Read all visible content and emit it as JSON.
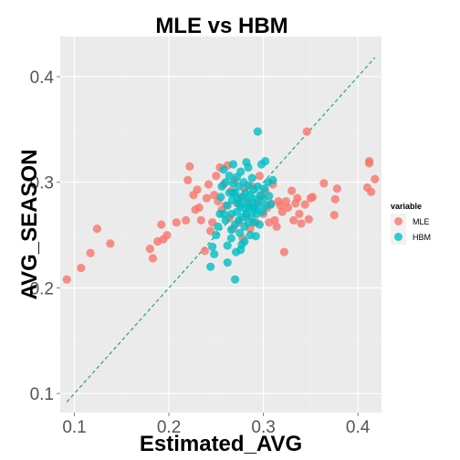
{
  "chart_data": {
    "type": "scatter",
    "title": "MLE vs HBM",
    "xlabel": "Estimated_AVG",
    "ylabel": "AVG_SEASON",
    "xlim": [
      0.085,
      0.425
    ],
    "ylim": [
      0.082,
      0.438
    ],
    "x_ticks": [
      0.1,
      0.2,
      0.3,
      0.4
    ],
    "y_ticks": [
      0.1,
      0.2,
      0.3,
      0.4
    ],
    "x_tick_labels": [
      "0.1",
      "0.2",
      "0.3",
      "0.4"
    ],
    "y_tick_labels": [
      "0.1",
      "0.2",
      "0.3",
      "0.4"
    ],
    "grid": true,
    "legend": {
      "title": "variable",
      "position": "right"
    },
    "reference_line": {
      "style": "dashed",
      "color": "#2a9d8f",
      "x": [
        0.092,
        0.418
      ],
      "y": [
        0.092,
        0.418
      ]
    },
    "series": [
      {
        "name": "MLE",
        "color": "#f8766d",
        "points": [
          [
            0.092,
            0.208
          ],
          [
            0.107,
            0.219
          ],
          [
            0.117,
            0.233
          ],
          [
            0.124,
            0.256
          ],
          [
            0.138,
            0.242
          ],
          [
            0.18,
            0.237
          ],
          [
            0.183,
            0.228
          ],
          [
            0.188,
            0.244
          ],
          [
            0.192,
            0.26
          ],
          [
            0.194,
            0.246
          ],
          [
            0.198,
            0.25
          ],
          [
            0.208,
            0.262
          ],
          [
            0.218,
            0.264
          ],
          [
            0.22,
            0.302
          ],
          [
            0.222,
            0.315
          ],
          [
            0.226,
            0.288
          ],
          [
            0.228,
            0.274
          ],
          [
            0.23,
            0.293
          ],
          [
            0.232,
            0.276
          ],
          [
            0.234,
            0.264
          ],
          [
            0.238,
            0.235
          ],
          [
            0.24,
            0.285
          ],
          [
            0.242,
            0.298
          ],
          [
            0.244,
            0.254
          ],
          [
            0.246,
            0.262
          ],
          [
            0.248,
            0.288
          ],
          [
            0.25,
            0.306
          ],
          [
            0.252,
            0.282
          ],
          [
            0.254,
            0.314
          ],
          [
            0.256,
            0.274
          ],
          [
            0.258,
            0.298
          ],
          [
            0.26,
            0.278
          ],
          [
            0.262,
            0.316
          ],
          [
            0.264,
            0.266
          ],
          [
            0.266,
            0.292
          ],
          [
            0.268,
            0.256
          ],
          [
            0.27,
            0.302
          ],
          [
            0.272,
            0.28
          ],
          [
            0.274,
            0.262
          ],
          [
            0.276,
            0.286
          ],
          [
            0.278,
            0.247
          ],
          [
            0.28,
            0.294
          ],
          [
            0.282,
            0.268
          ],
          [
            0.284,
            0.281
          ],
          [
            0.286,
            0.256
          ],
          [
            0.288,
            0.296
          ],
          [
            0.29,
            0.276
          ],
          [
            0.292,
            0.262
          ],
          [
            0.294,
            0.281
          ],
          [
            0.296,
            0.306
          ],
          [
            0.298,
            0.287
          ],
          [
            0.3,
            0.27
          ],
          [
            0.302,
            0.292
          ],
          [
            0.304,
            0.276
          ],
          [
            0.306,
            0.262
          ],
          [
            0.308,
            0.28
          ],
          [
            0.31,
            0.298
          ],
          [
            0.312,
            0.264
          ],
          [
            0.314,
            0.258
          ],
          [
            0.316,
            0.282
          ],
          [
            0.318,
            0.278
          ],
          [
            0.32,
            0.272
          ],
          [
            0.322,
            0.234
          ],
          [
            0.324,
            0.282
          ],
          [
            0.326,
            0.276
          ],
          [
            0.33,
            0.292
          ],
          [
            0.332,
            0.264
          ],
          [
            0.334,
            0.28
          ],
          [
            0.336,
            0.285
          ],
          [
            0.338,
            0.27
          ],
          [
            0.34,
            0.261
          ],
          [
            0.344,
            0.279
          ],
          [
            0.346,
            0.348
          ],
          [
            0.35,
            0.285
          ],
          [
            0.352,
            0.286
          ],
          [
            0.348,
            0.265
          ],
          [
            0.364,
            0.299
          ],
          [
            0.375,
            0.269
          ],
          [
            0.376,
            0.284
          ],
          [
            0.378,
            0.294
          ],
          [
            0.41,
            0.295
          ],
          [
            0.412,
            0.32
          ],
          [
            0.412,
            0.318
          ],
          [
            0.414,
            0.291
          ],
          [
            0.418,
            0.303
          ]
        ]
      },
      {
        "name": "HBM",
        "color": "#00bfc4",
        "points": [
          [
            0.244,
            0.22
          ],
          [
            0.246,
            0.239
          ],
          [
            0.248,
            0.232
          ],
          [
            0.25,
            0.25
          ],
          [
            0.252,
            0.258
          ],
          [
            0.254,
            0.27
          ],
          [
            0.255,
            0.286
          ],
          [
            0.256,
            0.296
          ],
          [
            0.258,
            0.312
          ],
          [
            0.26,
            0.264
          ],
          [
            0.26,
            0.3
          ],
          [
            0.262,
            0.278
          ],
          [
            0.262,
            0.24
          ],
          [
            0.264,
            0.29
          ],
          [
            0.264,
            0.306
          ],
          [
            0.266,
            0.27
          ],
          [
            0.266,
            0.255
          ],
          [
            0.267,
            0.283
          ],
          [
            0.268,
            0.299
          ],
          [
            0.268,
            0.317
          ],
          [
            0.27,
            0.26
          ],
          [
            0.27,
            0.29
          ],
          [
            0.271,
            0.234
          ],
          [
            0.272,
            0.272
          ],
          [
            0.272,
            0.305
          ],
          [
            0.273,
            0.284
          ],
          [
            0.274,
            0.264
          ],
          [
            0.274,
            0.296
          ],
          [
            0.275,
            0.252
          ],
          [
            0.276,
            0.278
          ],
          [
            0.276,
            0.31
          ],
          [
            0.277,
            0.241
          ],
          [
            0.278,
            0.286
          ],
          [
            0.278,
            0.267
          ],
          [
            0.279,
            0.3
          ],
          [
            0.28,
            0.275
          ],
          [
            0.28,
            0.258
          ],
          [
            0.281,
            0.29
          ],
          [
            0.282,
            0.319
          ],
          [
            0.282,
            0.27
          ],
          [
            0.283,
            0.282
          ],
          [
            0.284,
            0.262
          ],
          [
            0.284,
            0.297
          ],
          [
            0.285,
            0.276
          ],
          [
            0.286,
            0.25
          ],
          [
            0.286,
            0.288
          ],
          [
            0.287,
            0.268
          ],
          [
            0.288,
            0.304
          ],
          [
            0.289,
            0.281
          ],
          [
            0.29,
            0.262
          ],
          [
            0.29,
            0.293
          ],
          [
            0.291,
            0.274
          ],
          [
            0.292,
            0.249
          ],
          [
            0.292,
            0.284
          ],
          [
            0.293,
            0.27
          ],
          [
            0.294,
            0.348
          ],
          [
            0.294,
            0.296
          ],
          [
            0.295,
            0.278
          ],
          [
            0.296,
            0.26
          ],
          [
            0.297,
            0.288
          ],
          [
            0.298,
            0.317
          ],
          [
            0.299,
            0.272
          ],
          [
            0.3,
            0.284
          ],
          [
            0.301,
            0.294
          ],
          [
            0.302,
            0.32
          ],
          [
            0.303,
            0.278
          ],
          [
            0.305,
            0.3
          ],
          [
            0.306,
            0.287
          ],
          [
            0.308,
            0.279
          ],
          [
            0.31,
            0.302
          ],
          [
            0.27,
            0.208
          ],
          [
            0.262,
            0.224
          ],
          [
            0.266,
            0.247
          ],
          [
            0.276,
            0.236
          ],
          [
            0.28,
            0.244
          ],
          [
            0.268,
            0.29
          ],
          [
            0.258,
            0.27
          ],
          [
            0.284,
            0.314
          ],
          [
            0.274,
            0.28
          ],
          [
            0.288,
            0.276
          ]
        ]
      }
    ]
  }
}
